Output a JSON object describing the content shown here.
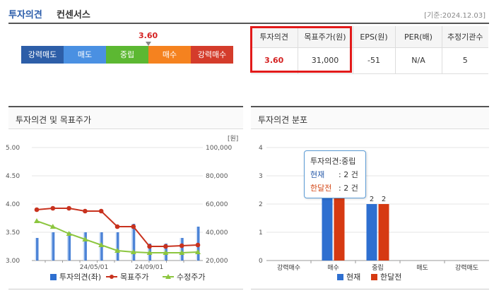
{
  "header": {
    "title_main": "투자의견",
    "title_sub": "컨센서스",
    "date": "[기준:2024.12.03]"
  },
  "scale": {
    "segments": [
      {
        "label": "강력매도",
        "color": "#2d5ea8"
      },
      {
        "label": "매도",
        "color": "#4a90e2"
      },
      {
        "label": "중립",
        "color": "#5cb832"
      },
      {
        "label": "매수",
        "color": "#f5821f"
      },
      {
        "label": "강력매수",
        "color": "#d43c2b"
      }
    ],
    "current_value": "3.60",
    "current_position": 0.6
  },
  "summary": {
    "headers": [
      "투자의견",
      "목표주가(원)",
      "EPS(원)",
      "PER(배)",
      "추정기관수"
    ],
    "values": [
      "3.60",
      "31,000",
      "-51",
      "N/A",
      "5"
    ]
  },
  "left_panel": {
    "title": "투자의견 및 목표주가",
    "unit_label": "[원]",
    "legend": [
      "투자의견(좌)",
      "목표주가",
      "수정주가"
    ]
  },
  "right_panel": {
    "title": "투자의견 분포",
    "legend": [
      "현재",
      "한달전"
    ]
  },
  "tooltip": {
    "title": "투자의견:중립",
    "row1_key": "현재",
    "row1_val": ": 2 건",
    "row2_key": "한달전",
    "row2_val": ": 2 건"
  },
  "chart_data": [
    {
      "type": "line",
      "title": "투자의견 및 목표주가",
      "y_left_ticks": [
        "5.00",
        "4.50",
        "4.00",
        "3.50",
        "3.00"
      ],
      "y_left_lim": [
        3.0,
        5.0
      ],
      "y_right_ticks": [
        "100,000",
        "80,000",
        "60,000",
        "40,000",
        "20,000"
      ],
      "y_right_lim": [
        20000,
        100000
      ],
      "x_tick_labels": [
        "24/05/01",
        "24/09/01"
      ],
      "series": [
        {
          "name": "투자의견(좌)",
          "type": "bar",
          "color": "#2e6fd0",
          "values": [
            3.4,
            3.5,
            3.5,
            3.5,
            3.5,
            3.5,
            3.65,
            3.3,
            3.3,
            3.4,
            3.6
          ]
        },
        {
          "name": "목표주가",
          "type": "line",
          "color": "#c8321e",
          "values": [
            56000,
            57000,
            57000,
            55000,
            55000,
            44000,
            44000,
            30000,
            30000,
            30500,
            31000
          ]
        },
        {
          "name": "수정주가",
          "type": "line",
          "color": "#8cc63f",
          "values": [
            48000,
            44000,
            39000,
            35000,
            31000,
            27000,
            26000,
            25500,
            25500,
            25500,
            26000
          ]
        }
      ]
    },
    {
      "type": "bar",
      "title": "투자의견 분포",
      "categories": [
        "강력매수",
        "매수",
        "중립",
        "매도",
        "강력매도"
      ],
      "y_ticks": [
        "4",
        "3",
        "2",
        "1",
        "0"
      ],
      "ylim": [
        0,
        4
      ],
      "series": [
        {
          "name": "현재",
          "color": "#2e6fd0",
          "values": [
            0,
            3,
            2,
            0,
            0
          ]
        },
        {
          "name": "한달전",
          "color": "#d63a12",
          "values": [
            0,
            3,
            2,
            0,
            0
          ]
        }
      ],
      "data_labels": [
        "2",
        "2"
      ]
    }
  ]
}
